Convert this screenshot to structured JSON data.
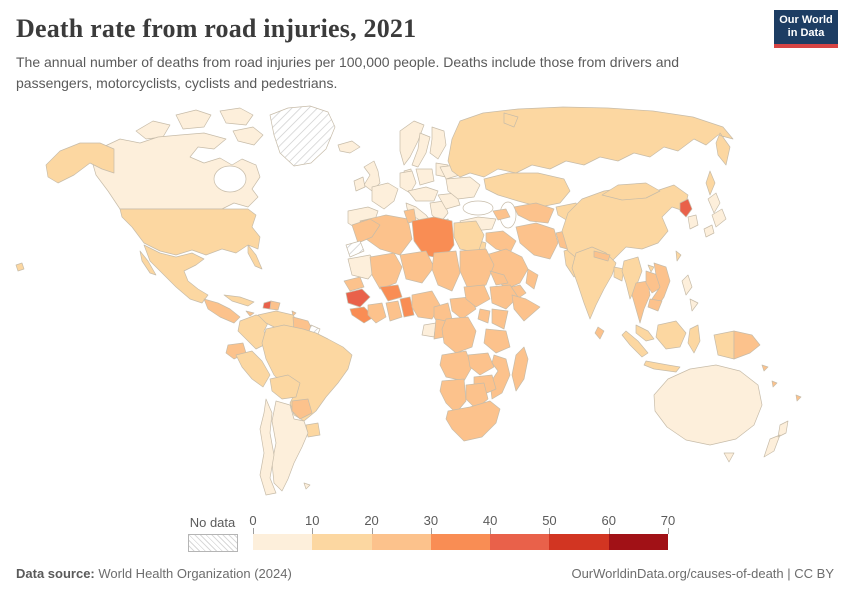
{
  "header": {
    "title": "Death rate from road injuries, 2021",
    "subtitle": "The annual number of deaths from road injuries per 100,000 people. Deaths include those from drivers and passengers, motorcyclists, cyclists and pedestrians.",
    "logo_line1": "Our World",
    "logo_line2": "in Data",
    "logo_bg_color": "#1d3d63",
    "logo_accent_color": "#d64444"
  },
  "legend": {
    "no_data_label": "No data",
    "ticks": [
      "0",
      "10",
      "20",
      "30",
      "40",
      "50",
      "60",
      "70"
    ],
    "bucket_colors": [
      "#fdefdb",
      "#fcd7a1",
      "#fcc28c",
      "#f98d54",
      "#e9614a",
      "#d23522",
      "#a11116"
    ],
    "bucket_ranges": [
      "0-10",
      "10-20",
      "20-30",
      "30-40",
      "40-50",
      "50-60",
      "60-70"
    ]
  },
  "map": {
    "ocean_color": "#ffffff",
    "border_color": "#c7bca9",
    "no_data_pattern_color": "#cccccc",
    "regions": {
      "greenland": "no_data",
      "western_sahara": "no_data",
      "french_guiana": "no_data",
      "canada": 0,
      "argentina": 0,
      "chile": 0,
      "falkland_islands": 0,
      "iceland": 0,
      "united_kingdom": 0,
      "ireland": 0,
      "norway": 0,
      "sweden": 0,
      "finland": 0,
      "denmark": 0,
      "baltics": 0,
      "spain_portugal": 0,
      "france": 0,
      "germany": 0,
      "poland": 0,
      "central_europe": 0,
      "italy": 0,
      "balkans": 0,
      "greece": 0,
      "romania_bulgaria": 0,
      "ukraine": 0,
      "belarus": 0,
      "turkey": 0,
      "japan": 0,
      "south_korea": 0,
      "philippines": 0,
      "australia": 0,
      "tasmania": 0,
      "new_zealand": 0,
      "gabon": 0,
      "mauritania": 0,
      "usa": 1,
      "alaska": 1,
      "mexico": 1,
      "cuba": 1,
      "colombia": 1,
      "venezuela": 1,
      "brazil": 1,
      "peru": 1,
      "bolivia": 1,
      "uruguay": 1,
      "russia": 1,
      "kazakhstan": 1,
      "kyrgyzstan_tajikistan": 1,
      "china": 1,
      "mongolia": 1,
      "india": 1,
      "bangladesh": 1,
      "myanmar": 1,
      "pakistan": 1,
      "malaysia": 1,
      "sumatra": 1,
      "java": 1,
      "borneo": 1,
      "sulawesi": 1,
      "west_papua": 1,
      "taiwan": 1,
      "egypt": 1,
      "jordan_israel": 1,
      "guyana_suriname": 2,
      "ecuador": 2,
      "paraguay": 2,
      "central_america": 2,
      "dominican_republic": 2,
      "jamaica": 2,
      "antilles": 2,
      "morocco": 2,
      "algeria": 2,
      "tunisia": 2,
      "mali": 2,
      "niger": 2,
      "chad": 2,
      "sudan": 2,
      "south_sudan": 2,
      "eritrea_djibouti": 2,
      "senegal_gambia": 2,
      "ivory_coast": 2,
      "ghana": 2,
      "nigeria": 2,
      "cameroon": 2,
      "central_african_republic": 2,
      "ethiopia": 2,
      "somalia": 2,
      "kenya": 2,
      "uganda": 2,
      "congo": 2,
      "drc": 2,
      "tanzania": 2,
      "angola": 2,
      "zambia": 2,
      "malawi_mozambique": 2,
      "zimbabwe": 2,
      "namibia": 2,
      "botswana": 2,
      "south_africa": 2,
      "madagascar": 2,
      "saudi_arabia": 2,
      "yemen": 2,
      "oman": 2,
      "syria_iraq": 2,
      "iran": 2,
      "afghanistan": 2,
      "turkmenistan_uzbekistan": 2,
      "caucasus": 2,
      "nepal": 2,
      "sri_lanka": 2,
      "thailand": 2,
      "laos": 2,
      "vietnam": 2,
      "cambodia": 2,
      "papua_new_guinea": 2,
      "fiji": 2,
      "solomon_islands": 2,
      "vanuatu": 2,
      "libya": 3,
      "burkina_faso": 3,
      "sierra_leone_liberia": 3,
      "togo_benin": 3,
      "haiti": 4,
      "guinea": 4,
      "north_korea": 4
    }
  },
  "footer": {
    "source_label": "Data source:",
    "source_text": " World Health Organization (2024)",
    "link": "OurWorldinData.org/causes-of-death",
    "separator": " | ",
    "license": "CC BY"
  }
}
